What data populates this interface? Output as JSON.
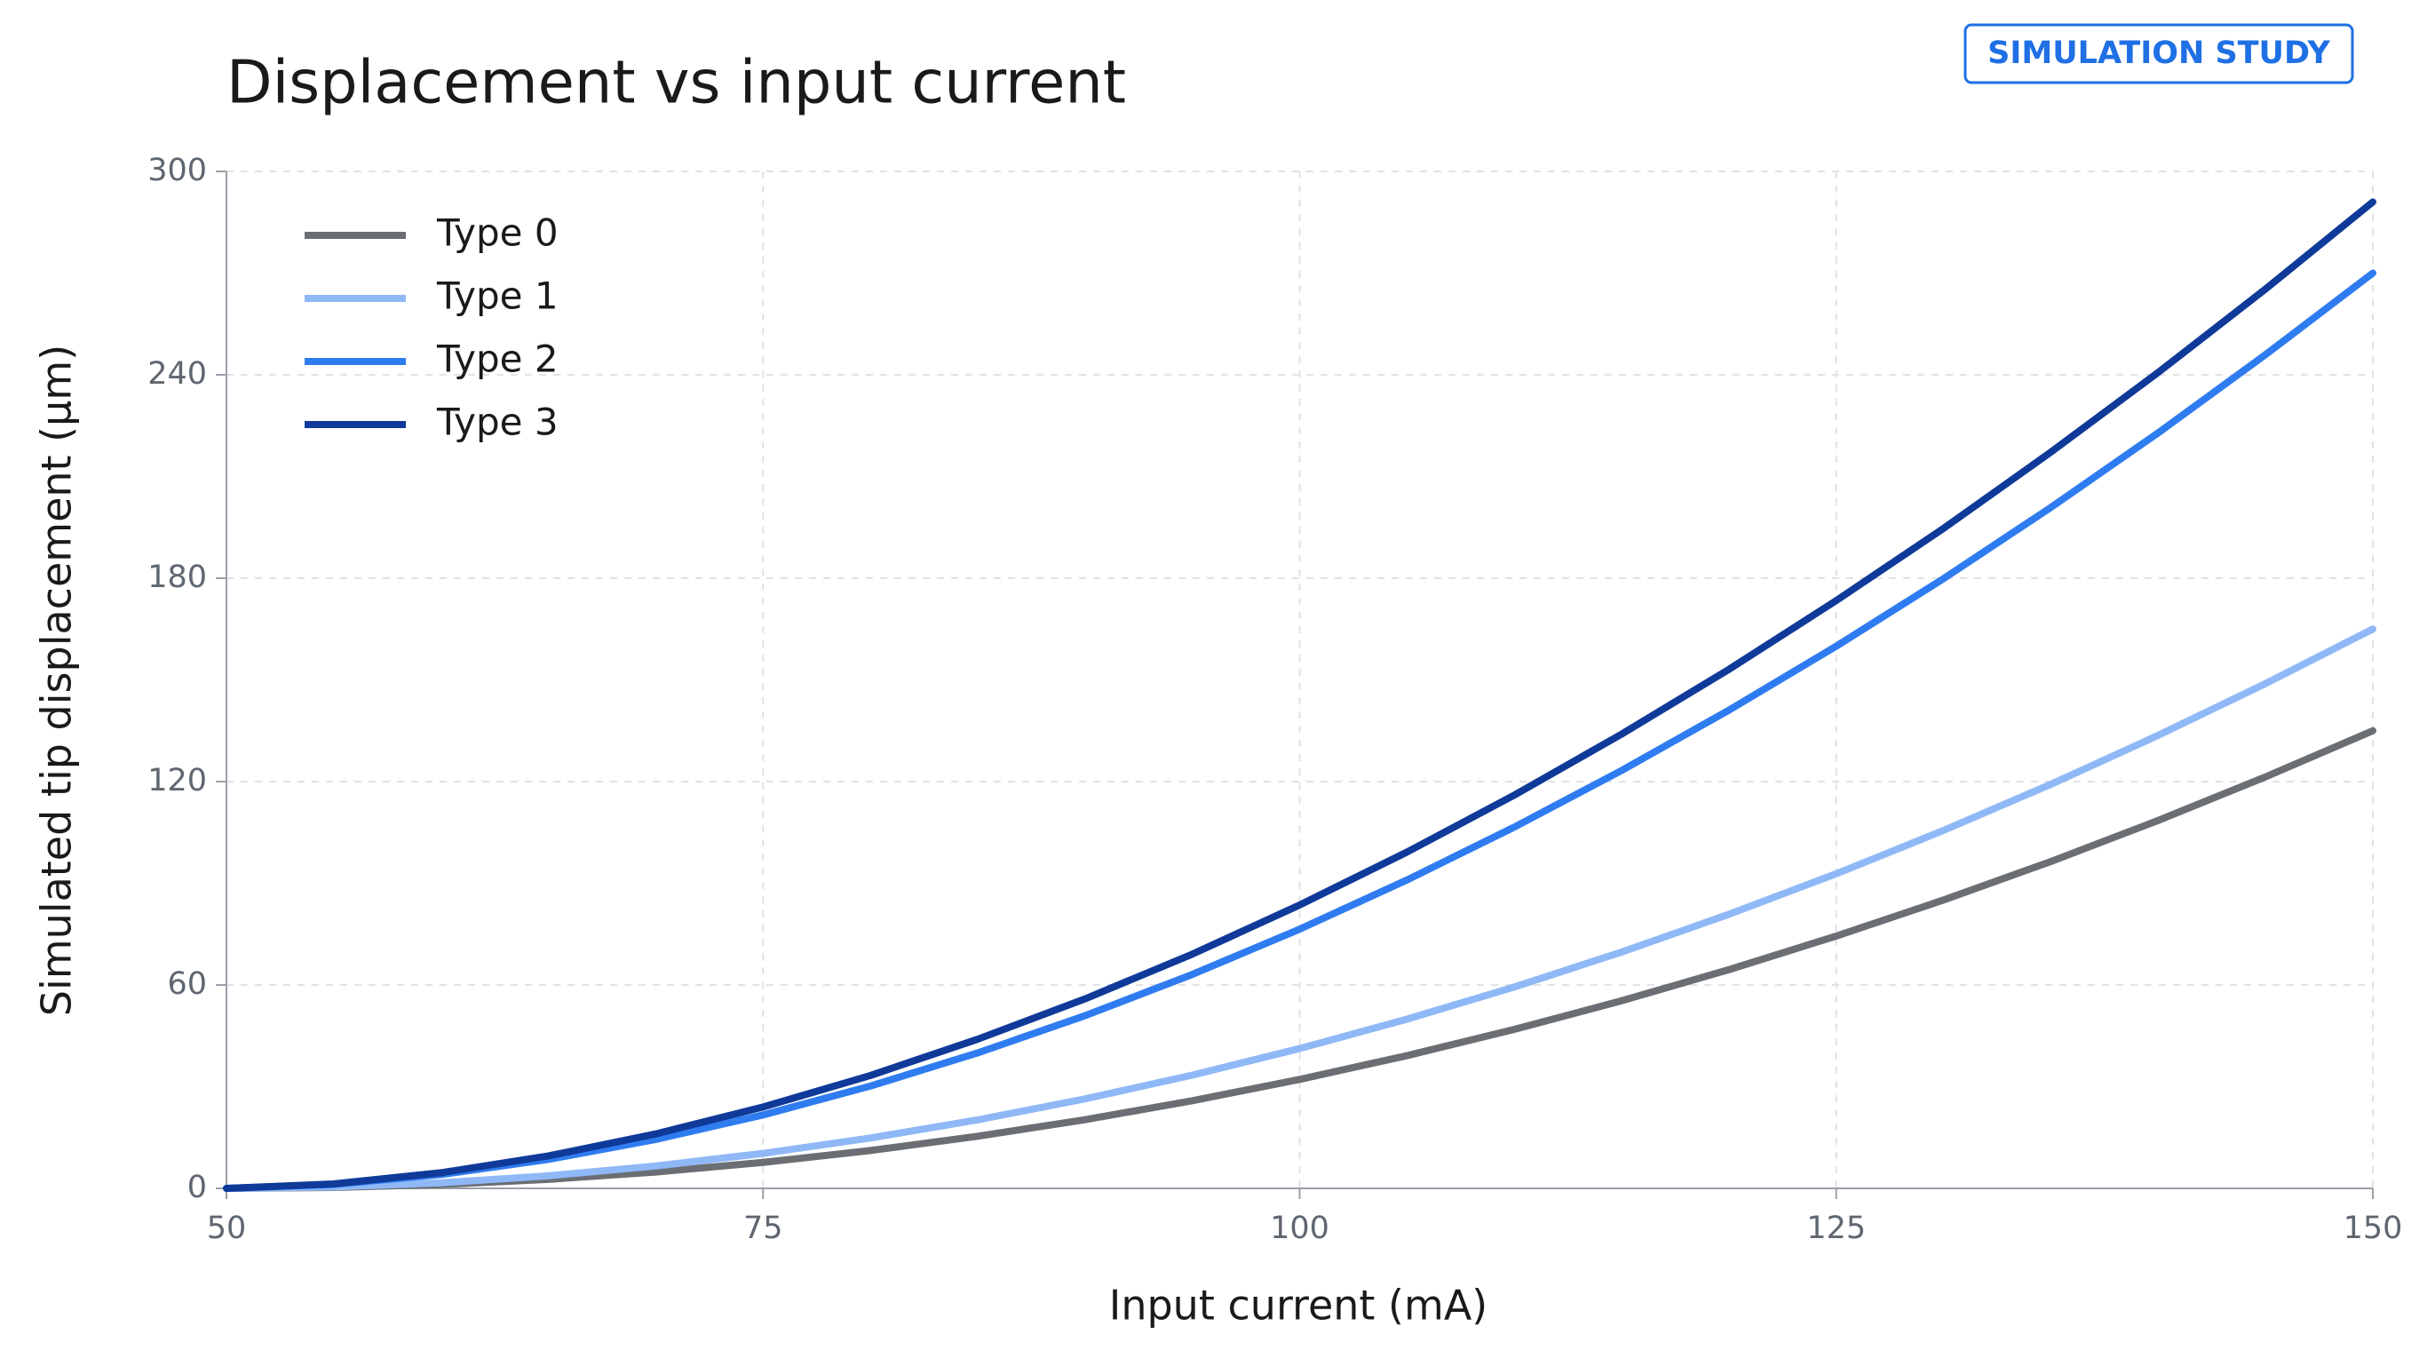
{
  "chart_data": {
    "type": "line",
    "title": "Displacement vs input current",
    "badge": "SIMULATION STUDY",
    "x_label": "Input current (mA)",
    "y_label": "Simulated tip displacement (µm)",
    "x": [
      50,
      55,
      60,
      65,
      70,
      75,
      80,
      85,
      90,
      95,
      100,
      105,
      110,
      115,
      120,
      125,
      130,
      135,
      140,
      145,
      150
    ],
    "series": [
      {
        "name": "Type 0",
        "color": "#6b6e73",
        "values": [
          0,
          0.27,
          1.15,
          2.66,
          4.82,
          7.66,
          11.17,
          15.37,
          20.26,
          25.85,
          32.15,
          39.16,
          46.89,
          55.34,
          64.52,
          74.43,
          85.06,
          96.43,
          108.54,
          121.4,
          135
        ]
      },
      {
        "name": "Type 1",
        "color": "#8fb8f7",
        "values": [
          0,
          0.41,
          1.65,
          3.71,
          6.6,
          10.31,
          14.85,
          20.21,
          26.4,
          33.41,
          41.25,
          49.91,
          59.4,
          69.71,
          80.85,
          92.81,
          105.6,
          119.21,
          133.65,
          148.91,
          165
        ]
      },
      {
        "name": "Type 2",
        "color": "#2f7cf0",
        "values": [
          0,
          1.16,
          4.09,
          8.55,
          14.43,
          21.66,
          30.18,
          39.96,
          50.94,
          63.12,
          76.47,
          90.97,
          106.57,
          123.28,
          141.07,
          159.94,
          179.88,
          200.87,
          222.88,
          245.95,
          270
        ]
      },
      {
        "name": "Type 3",
        "color": "#0f3a99",
        "values": [
          0,
          1.32,
          4.61,
          9.57,
          16.06,
          24.0,
          33.3,
          44.0,
          55.9,
          69.1,
          83.6,
          99.2,
          116.0,
          134.0,
          153.1,
          173.4,
          194.7,
          217.2,
          240.7,
          265.3,
          291
        ]
      }
    ],
    "xlim": [
      50,
      150
    ],
    "xticks": [
      50,
      75,
      100,
      125,
      150
    ],
    "ylim": [
      0,
      300
    ],
    "yticks": [
      0,
      60,
      120,
      180,
      240,
      300
    ],
    "grid": true,
    "legend": "upper left"
  }
}
